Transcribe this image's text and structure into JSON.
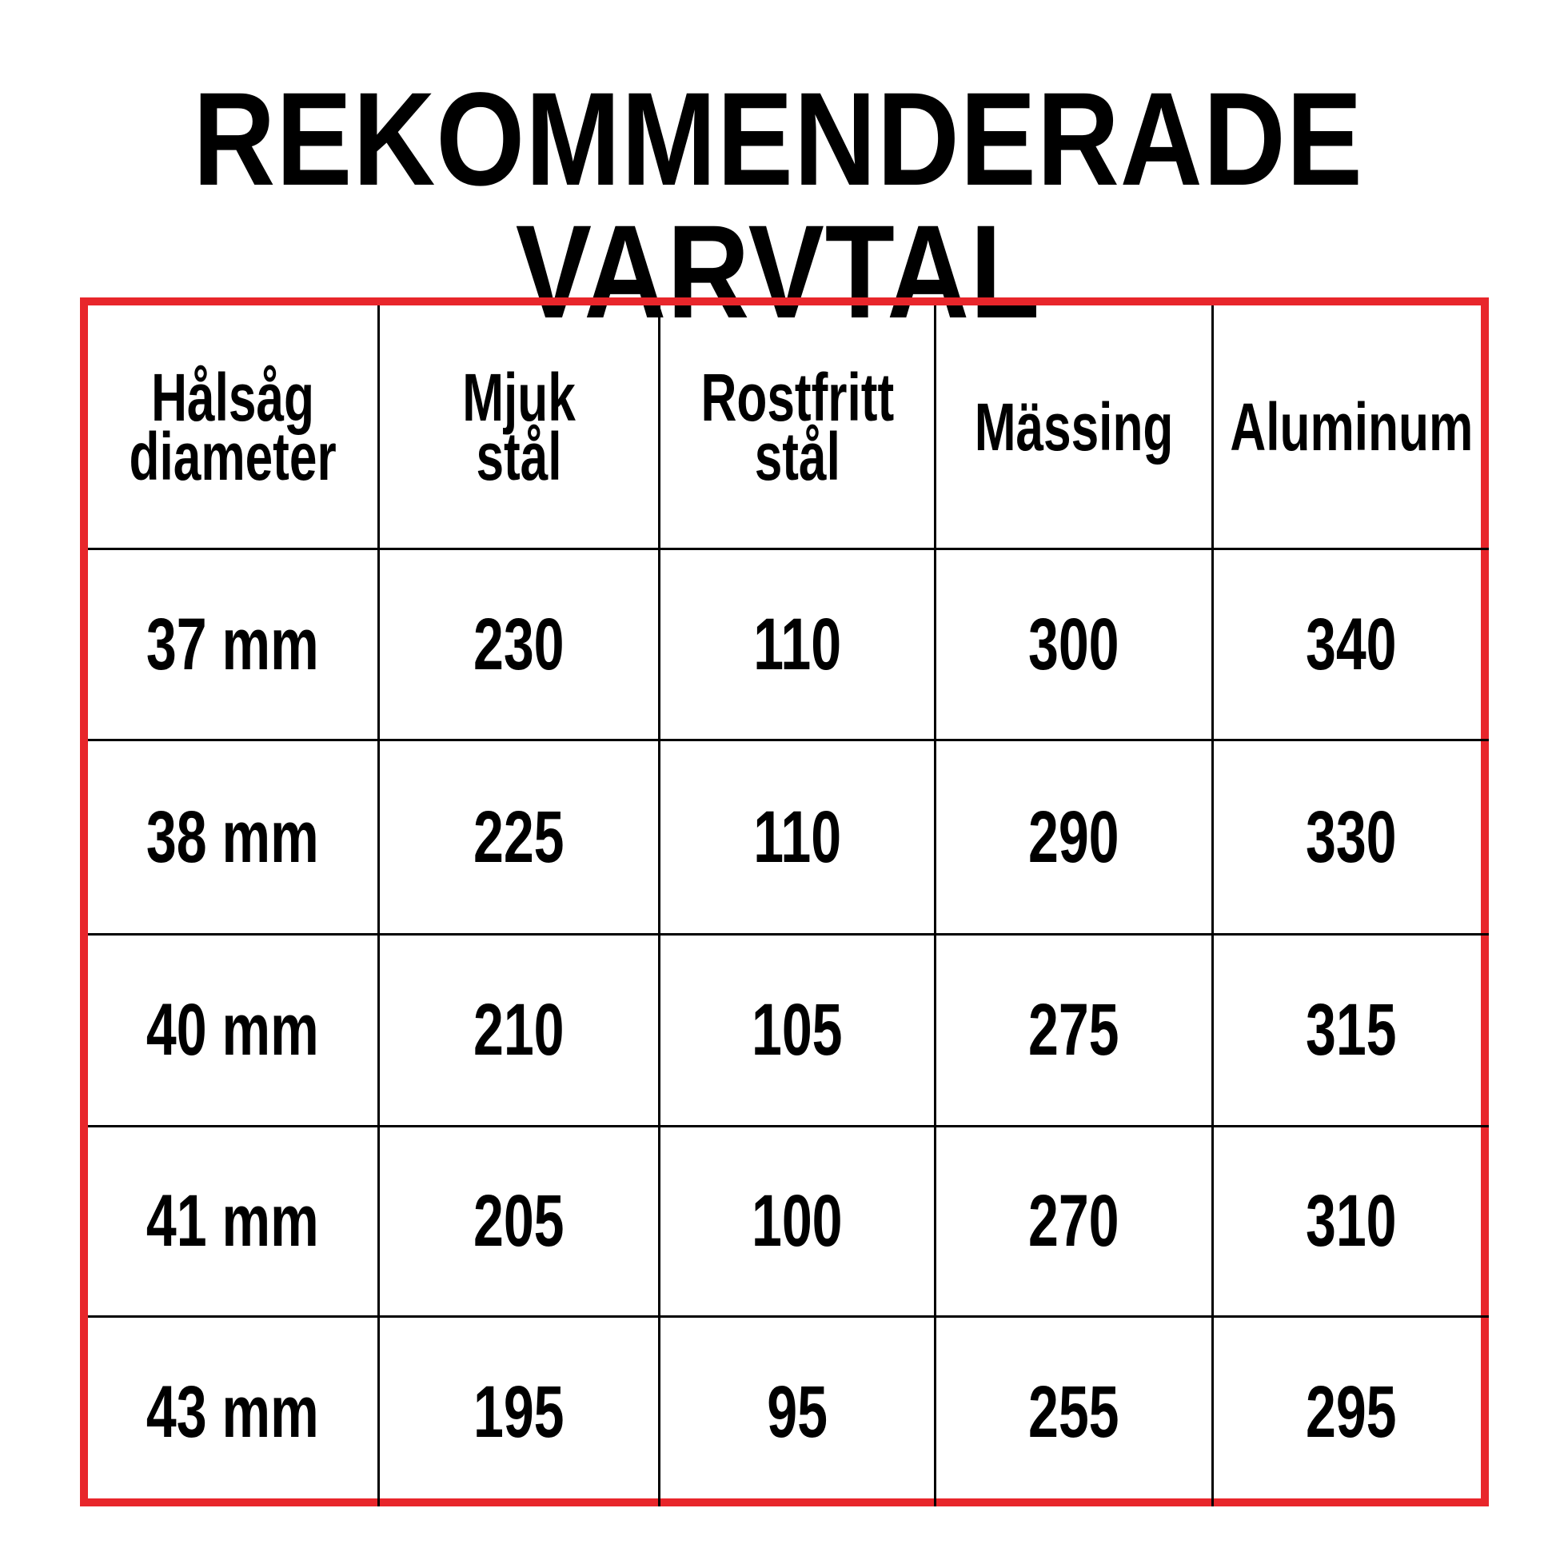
{
  "title": "REKOMMENDERADE VARVTAL",
  "table": {
    "headers": [
      "Hålsåg\ndiameter",
      "Mjuk stål",
      "Rostfritt\nstål",
      "Mässing",
      "Aluminum"
    ],
    "rows": [
      [
        "37 mm",
        "230",
        "110",
        "300",
        "340"
      ],
      [
        "38 mm",
        "225",
        "110",
        "290",
        "330"
      ],
      [
        "40 mm",
        "210",
        "105",
        "275",
        "315"
      ],
      [
        "41 mm",
        "205",
        "100",
        "270",
        "310"
      ],
      [
        "43 mm",
        "195",
        "95",
        "255",
        "295"
      ]
    ]
  },
  "colors": {
    "border": "#e8262b",
    "text": "#000000"
  }
}
